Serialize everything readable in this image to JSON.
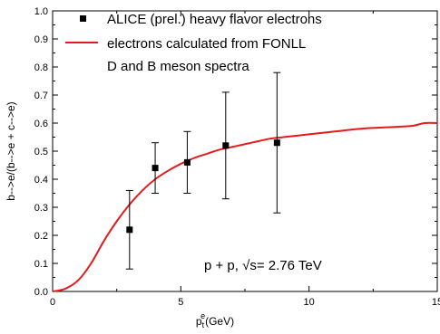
{
  "chart_data": {
    "type": "scatter",
    "xlabel_main": "p",
    "xlabel_sub": "t",
    "xlabel_sup": "e",
    "xlabel_unit": "(GeV)",
    "ylabel": "b-->e/(b-->e + c-->e)",
    "xlim": [
      0,
      15
    ],
    "ylim": [
      0,
      1.0
    ],
    "x_ticks": [
      "0",
      "5",
      "10",
      "15"
    ],
    "y_ticks": [
      "0.0",
      "0.1",
      "0.2",
      "0.3",
      "0.4",
      "0.5",
      "0.6",
      "0.7",
      "0.8",
      "0.9",
      "1.0"
    ],
    "grid": false,
    "legend_position": "top-left",
    "series": [
      {
        "name": "ALICE (prel.) heavy flavor electrons",
        "kind": "points_with_errorbars",
        "color": "#000000",
        "points": [
          {
            "x": 3.0,
            "y": 0.22,
            "ylo": 0.08,
            "yhi": 0.36
          },
          {
            "x": 4.0,
            "y": 0.44,
            "ylo": 0.35,
            "yhi": 0.53
          },
          {
            "x": 5.25,
            "y": 0.46,
            "ylo": 0.35,
            "yhi": 0.57
          },
          {
            "x": 6.75,
            "y": 0.52,
            "ylo": 0.33,
            "yhi": 0.71
          },
          {
            "x": 8.75,
            "y": 0.53,
            "ylo": 0.28,
            "yhi": 0.78
          }
        ]
      },
      {
        "name": "electrons calculated from FONLL",
        "name_line2": "D and B meson spectra",
        "kind": "line",
        "color": "#e41a1c",
        "x": [
          0,
          0.5,
          1.0,
          1.5,
          2.0,
          2.5,
          3.0,
          3.5,
          4.0,
          4.5,
          5.0,
          5.5,
          6.0,
          6.5,
          7.0,
          7.5,
          8.0,
          8.5,
          9.0,
          9.5,
          10.0,
          11.0,
          12.0,
          13.0,
          14.0,
          14.5,
          15.0
        ],
        "y": [
          0.0,
          0.01,
          0.04,
          0.1,
          0.18,
          0.25,
          0.31,
          0.36,
          0.4,
          0.43,
          0.455,
          0.475,
          0.49,
          0.505,
          0.515,
          0.525,
          0.535,
          0.545,
          0.55,
          0.555,
          0.56,
          0.57,
          0.58,
          0.585,
          0.59,
          0.6,
          0.6
        ]
      }
    ],
    "annotation": "p + p, √s= 2.76 TeV"
  }
}
